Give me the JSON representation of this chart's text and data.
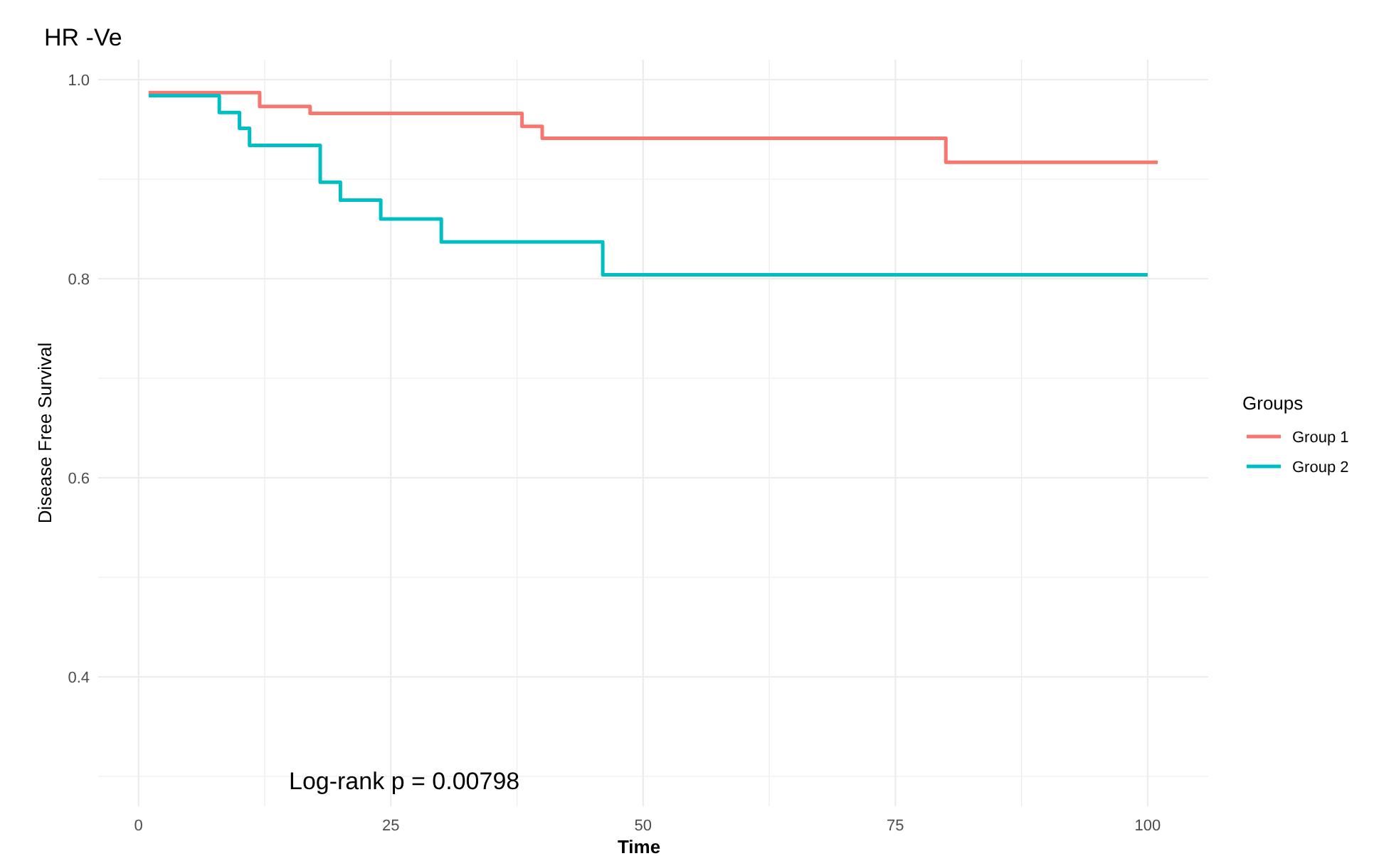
{
  "chart_data": {
    "type": "step",
    "title": "HR -Ve",
    "xlabel": "Time",
    "ylabel": "Disease Free Survival",
    "legend_title": "Groups",
    "xlim": [
      -4,
      106
    ],
    "ylim": [
      0.27,
      1.02
    ],
    "xticks": [
      0,
      {
        "value": 12.5,
        "label": null
      },
      25,
      {
        "value": 37.5,
        "label": null
      },
      50,
      {
        "value": 62.5,
        "label": null
      },
      75,
      {
        "value": 87.5,
        "label": null
      },
      100
    ],
    "yticks": [
      {
        "value": 0.3,
        "label": null
      },
      0.4,
      {
        "value": 0.5,
        "label": null
      },
      0.6,
      {
        "value": 0.7,
        "label": null
      },
      0.8,
      {
        "value": 0.9,
        "label": null
      },
      {
        "value": 1.0,
        "label": "1.0"
      }
    ],
    "grid": true,
    "legend": "right",
    "line_style": "solid",
    "marker": "none",
    "series": [
      {
        "name": "Group 1",
        "color": "#f8766d",
        "x": [
          1,
          12,
          17,
          38,
          40,
          80,
          101
        ],
        "values": [
          0.987,
          0.973,
          0.966,
          0.953,
          0.941,
          0.917,
          0.917
        ]
      },
      {
        "name": "Group 2",
        "color": "#00bfc4",
        "x": [
          1,
          8,
          10,
          11,
          18,
          20,
          24,
          30,
          46,
          100
        ],
        "values": [
          0.984,
          0.967,
          0.951,
          0.934,
          0.897,
          0.879,
          0.86,
          0.837,
          0.804,
          0.804
        ]
      }
    ],
    "annotations": [
      "Log-rank p = 0.00798"
    ]
  }
}
